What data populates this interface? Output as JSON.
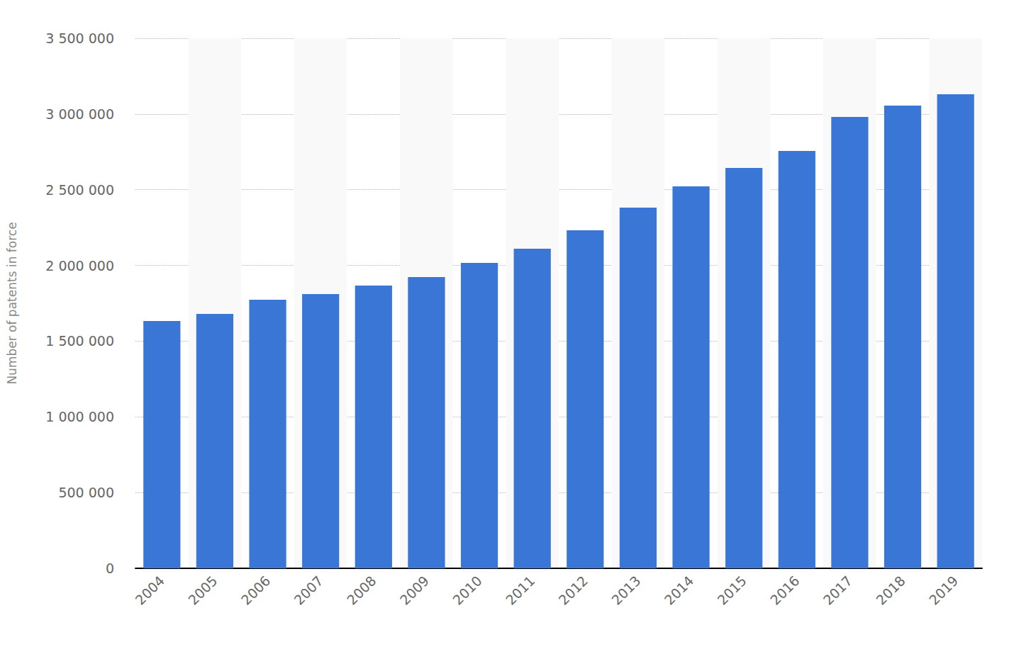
{
  "chart_data": {
    "type": "bar",
    "y_label": "Number of patents in force",
    "categories": [
      "2004",
      "2005",
      "2006",
      "2007",
      "2008",
      "2009",
      "2010",
      "2011",
      "2012",
      "2013",
      "2014",
      "2015",
      "2016",
      "2017",
      "2018",
      "2019"
    ],
    "values": [
      1633000,
      1680000,
      1773000,
      1811000,
      1867000,
      1923000,
      2017000,
      2110000,
      2232000,
      2382000,
      2522000,
      2644000,
      2756000,
      2981000,
      3056000,
      3130000
    ],
    "color": "#3a76d6",
    "ylim": [
      0,
      3500000
    ],
    "yticks": [
      0,
      {
        "value": 500000,
        "label": "500 000"
      },
      {
        "value": 1000000,
        "label": "1 000 000"
      },
      {
        "value": 1500000,
        "label": "1 500 000"
      },
      {
        "value": 2000000,
        "label": "2 000 000"
      },
      {
        "value": 2500000,
        "label": "2 500 000"
      },
      {
        "value": 3000000,
        "label": "3 000 000"
      },
      {
        "value": 3500000,
        "label": "3 500 000"
      }
    ],
    "grid": true
  }
}
